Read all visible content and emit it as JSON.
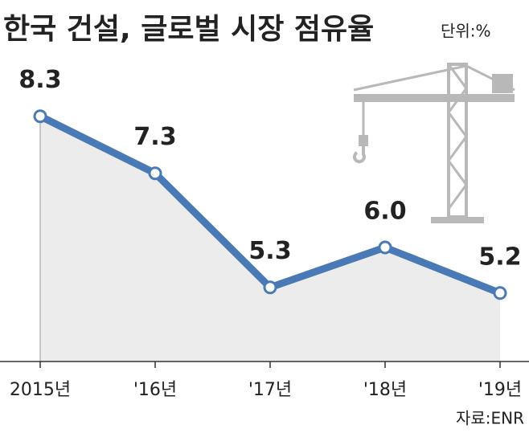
{
  "chart_data": {
    "type": "line",
    "title": "한국 건설, 글로벌 시장 점유율",
    "unit": "단위:%",
    "source": "자료:ENR",
    "categories": [
      "2015년",
      "'16년",
      "'17년",
      "'18년",
      "'19년"
    ],
    "values": [
      8.3,
      7.3,
      5.3,
      6.0,
      5.2
    ],
    "value_labels": [
      "8.3",
      "7.3",
      "5.3",
      "6.0",
      "5.2"
    ],
    "color": "#4a7ab5",
    "area_color": "#ececec",
    "ylim": [
      4,
      9
    ]
  }
}
